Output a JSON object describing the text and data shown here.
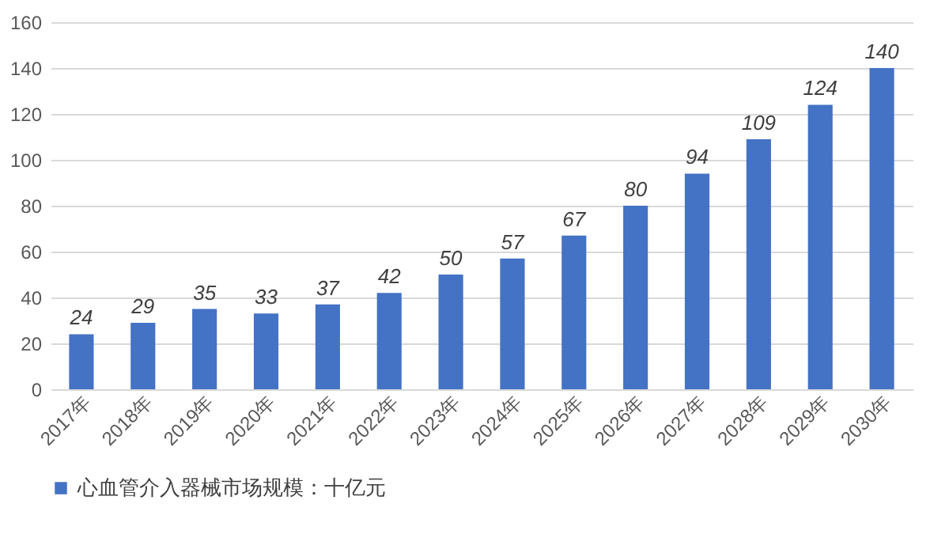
{
  "chart_data": {
    "type": "bar",
    "categories": [
      "2017年",
      "2018年",
      "2019年",
      "2020年",
      "2021年",
      "2022年",
      "2023年",
      "2024年",
      "2025年",
      "2026年",
      "2027年",
      "2028年",
      "2029年",
      "2030年"
    ],
    "series": [
      {
        "name": "心血管介入器械市场规模：十亿元",
        "color": "#4472c4",
        "values": [
          24,
          29,
          35,
          33,
          37,
          42,
          50,
          57,
          67,
          80,
          94,
          109,
          124,
          140
        ]
      }
    ],
    "ylim": [
      0,
      160
    ],
    "yticks": [
      0,
      20,
      40,
      60,
      80,
      100,
      120,
      140,
      160
    ],
    "grid": "y",
    "legend": "bottom",
    "data_labels": true
  }
}
